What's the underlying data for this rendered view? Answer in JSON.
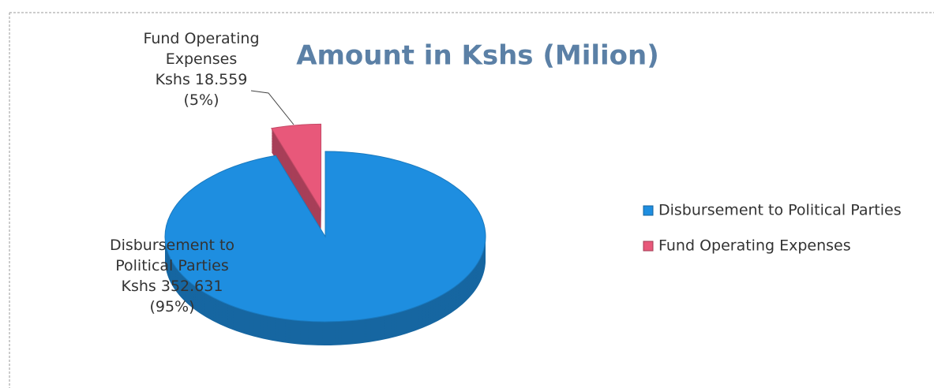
{
  "chart_data": {
    "type": "pie",
    "title": "Amount in Kshs (Milion)",
    "categories": [
      "Disbursement to Political Parties",
      "Fund Operating Expenses"
    ],
    "values": [
      352.631,
      18.559
    ],
    "value_labels": [
      "Kshs 352.631",
      "Kshs 18.559"
    ],
    "percent_labels": [
      "(95%)",
      "(5%)"
    ],
    "colors": [
      "#1e8ee0",
      "#e8587a"
    ],
    "legend": "right"
  }
}
